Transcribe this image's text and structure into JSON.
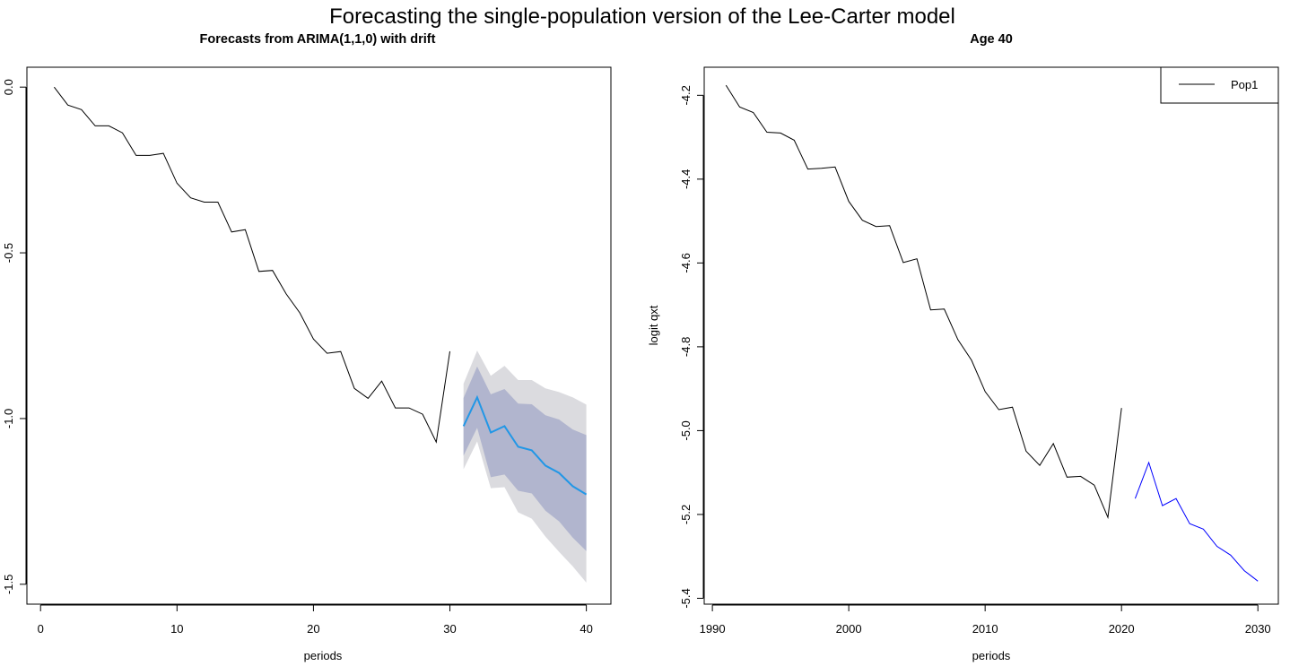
{
  "chart_data": [
    {
      "type": "line",
      "suptitle": "Forecasting the single-population version of the Lee-Carter model",
      "title": "Forecasts from ARIMA(1,1,0) with drift",
      "xlabel": "periods",
      "ylabel": "",
      "xlim": [
        -1,
        41.8
      ],
      "ylim": [
        -1.56,
        0.06
      ],
      "xticks": [
        0,
        10,
        20,
        30,
        40
      ],
      "xtick_labels": [
        "0",
        "10",
        "20",
        "30",
        "40"
      ],
      "yticks": [
        0.0,
        -0.5,
        -1.0,
        -1.5
      ],
      "ytick_labels": [
        "0.0",
        "-0.5",
        "-1.0",
        "-1.5"
      ],
      "grid": false,
      "colors": {
        "history": "#000000",
        "mean": "#2297E6",
        "band80": "#B1B5CE",
        "band95": "#DBDBDF"
      },
      "series": [
        {
          "name": "history",
          "x": [
            1,
            2,
            3,
            4,
            5,
            6,
            7,
            8,
            9,
            10,
            11,
            12,
            13,
            14,
            15,
            16,
            17,
            18,
            19,
            20,
            21,
            22,
            23,
            24,
            25,
            26,
            27,
            28,
            29,
            30
          ],
          "values": [
            0.0,
            -0.054,
            -0.068,
            -0.117,
            -0.117,
            -0.138,
            -0.206,
            -0.206,
            -0.2,
            -0.29,
            -0.334,
            -0.347,
            -0.347,
            -0.437,
            -0.43,
            -0.556,
            -0.553,
            -0.624,
            -0.681,
            -0.76,
            -0.803,
            -0.798,
            -0.909,
            -0.939,
            -0.887,
            -0.968,
            -0.968,
            -0.987,
            -1.071,
            -0.797
          ]
        },
        {
          "name": "forecast mean",
          "x": [
            31,
            32,
            33,
            34,
            35,
            36,
            37,
            38,
            39,
            40
          ],
          "values": [
            -1.023,
            -0.936,
            -1.042,
            -1.023,
            -1.085,
            -1.096,
            -1.142,
            -1.164,
            -1.204,
            -1.229
          ]
        },
        {
          "name": "80% upper",
          "x": [
            31,
            32,
            33,
            34,
            35,
            36,
            37,
            38,
            39,
            40
          ],
          "values": [
            -0.938,
            -0.843,
            -0.927,
            -0.911,
            -0.955,
            -0.957,
            -0.99,
            -1.003,
            -1.033,
            -1.05
          ]
        },
        {
          "name": "80% lower",
          "x": [
            31,
            32,
            33,
            34,
            35,
            36,
            37,
            38,
            39,
            40
          ],
          "values": [
            -1.112,
            -1.028,
            -1.177,
            -1.169,
            -1.218,
            -1.226,
            -1.278,
            -1.31,
            -1.359,
            -1.4
          ]
        },
        {
          "name": "95% upper",
          "x": [
            31,
            32,
            33,
            34,
            35,
            36,
            37,
            38,
            39,
            40
          ],
          "values": [
            -0.895,
            -0.795,
            -0.871,
            -0.841,
            -0.884,
            -0.884,
            -0.909,
            -0.92,
            -0.936,
            -0.958
          ]
        },
        {
          "name": "95% lower",
          "x": [
            31,
            32,
            33,
            34,
            35,
            36,
            37,
            38,
            39,
            40
          ],
          "values": [
            -1.153,
            -1.069,
            -1.21,
            -1.207,
            -1.283,
            -1.302,
            -1.356,
            -1.402,
            -1.446,
            -1.495
          ]
        }
      ]
    },
    {
      "type": "line",
      "title": "Age 40",
      "xlabel": "periods",
      "ylabel": "logit qxt",
      "xlim": [
        1989.4,
        2031.5
      ],
      "ylim": [
        -5.414,
        -4.133
      ],
      "xticks": [
        1990,
        2000,
        2010,
        2020,
        2030
      ],
      "xtick_labels": [
        "1990",
        "2000",
        "2010",
        "2020",
        "2030"
      ],
      "yticks": [
        -4.2,
        -4.4,
        -4.6,
        -4.8,
        -5.0,
        -5.2,
        -5.4
      ],
      "ytick_labels": [
        "-4.2",
        "-4.4",
        "-4.6",
        "-4.8",
        "-5.0",
        "-5.2",
        "-5.4"
      ],
      "grid": false,
      "legend": {
        "position": "top-right",
        "entries": [
          "Pop1"
        ]
      },
      "colors": {
        "history": "#000000",
        "forecast": "#0000FF"
      },
      "series": [
        {
          "name": "Pop1",
          "x": [
            1991,
            1992,
            1993,
            1994,
            1995,
            1996,
            1997,
            1998,
            1999,
            2000,
            2001,
            2002,
            2003,
            2004,
            2005,
            2006,
            2007,
            2008,
            2009,
            2010,
            2011,
            2012,
            2013,
            2014,
            2015,
            2016,
            2017,
            2018,
            2019,
            2020
          ],
          "values": [
            -4.176,
            -4.228,
            -4.241,
            -4.288,
            -4.29,
            -4.307,
            -4.376,
            -4.374,
            -4.371,
            -4.453,
            -4.498,
            -4.513,
            -4.511,
            -4.599,
            -4.59,
            -4.712,
            -4.71,
            -4.783,
            -4.832,
            -4.907,
            -4.95,
            -4.944,
            -5.049,
            -5.083,
            -5.031,
            -5.111,
            -5.109,
            -5.13,
            -5.207,
            -4.946
          ]
        },
        {
          "name": "Pop1 forecast",
          "x": [
            2021,
            2022,
            2023,
            2024,
            2025,
            2026,
            2027,
            2028,
            2029,
            2030
          ],
          "values": [
            -5.162,
            -5.076,
            -5.179,
            -5.162,
            -5.222,
            -5.235,
            -5.276,
            -5.297,
            -5.334,
            -5.359
          ]
        }
      ]
    }
  ]
}
